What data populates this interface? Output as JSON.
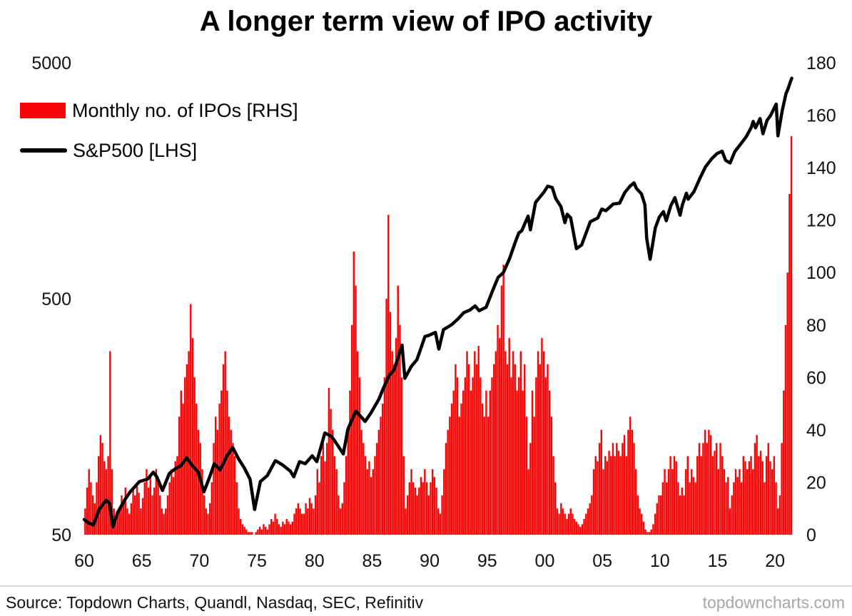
{
  "title": "A longer term view of IPO activity",
  "legend": [
    {
      "label": "Monthly no. of IPOs [RHS]",
      "color": "#f60606",
      "type": "bar"
    },
    {
      "label": "S&P500 [LHS]",
      "color": "#000000",
      "type": "line"
    }
  ],
  "footer": {
    "source": "Source: Topdown Charts, Quandl, Nasdaq, SEC, Refinitiv",
    "watermark": "topdowncharts.com"
  },
  "chart_data": {
    "type": "combo",
    "title": "A longer term view of IPO activity",
    "x_axis": {
      "min": 1960,
      "max": 2021.6,
      "tick_years": [
        1960,
        1965,
        1970,
        1975,
        1980,
        1985,
        1990,
        1995,
        2000,
        2005,
        2010,
        2015,
        2020
      ],
      "tick_labels": [
        "60",
        "65",
        "70",
        "75",
        "80",
        "85",
        "90",
        "95",
        "00",
        "05",
        "10",
        "15",
        "20"
      ]
    },
    "left_axis": {
      "scale": "log",
      "min": 50,
      "max": 5000,
      "ticks": [
        5000,
        500,
        50
      ]
    },
    "right_axis": {
      "scale": "linear",
      "min": 0,
      "max": 180,
      "ticks": [
        180,
        160,
        140,
        120,
        100,
        80,
        60,
        40,
        20,
        0
      ]
    },
    "series": [
      {
        "name": "Monthly no. of IPOs [RHS]",
        "type": "bar",
        "axis": "right",
        "color": "#f60606",
        "start_year": 1960,
        "points_per_year": 6,
        "values": [
          10,
          18,
          25,
          20,
          15,
          12,
          20,
          30,
          38,
          35,
          28,
          25,
          30,
          70,
          25,
          10,
          5,
          8,
          10,
          15,
          12,
          18,
          10,
          8,
          12,
          18,
          15,
          20,
          16,
          10,
          14,
          20,
          25,
          18,
          22,
          15,
          18,
          25,
          20,
          15,
          10,
          8,
          10,
          15,
          20,
          25,
          22,
          28,
          30,
          45,
          55,
          50,
          60,
          65,
          70,
          88,
          75,
          60,
          50,
          40,
          35,
          25,
          15,
          10,
          8,
          12,
          20,
          35,
          45,
          40,
          50,
          55,
          65,
          70,
          55,
          45,
          40,
          35,
          30,
          20,
          10,
          6,
          4,
          3,
          2,
          1,
          1,
          1,
          0,
          1,
          2,
          3,
          2,
          4,
          3,
          2,
          4,
          6,
          5,
          8,
          6,
          4,
          3,
          5,
          4,
          6,
          5,
          4,
          5,
          8,
          10,
          12,
          10,
          8,
          8,
          12,
          10,
          14,
          12,
          10,
          15,
          25,
          20,
          30,
          35,
          28,
          35,
          56,
          48,
          40,
          30,
          25,
          15,
          10,
          12,
          20,
          30,
          40,
          55,
          80,
          108,
          95,
          70,
          60,
          40,
          35,
          30,
          25,
          28,
          22,
          25,
          30,
          35,
          40,
          45,
          50,
          60,
          90,
          122,
          85,
          70,
          65,
          75,
          95,
          80,
          60,
          30,
          10,
          15,
          20,
          25,
          20,
          18,
          15,
          18,
          22,
          20,
          25,
          20,
          15,
          20,
          25,
          22,
          18,
          10,
          8,
          15,
          25,
          35,
          40,
          45,
          50,
          55,
          65,
          60,
          45,
          50,
          55,
          60,
          70,
          65,
          55,
          60,
          70,
          65,
          72,
          60,
          50,
          45,
          55,
          45,
          55,
          60,
          65,
          70,
          80,
          75,
          95,
          103,
          70,
          65,
          75,
          60,
          70,
          65,
          55,
          60,
          70,
          55,
          65,
          45,
          25,
          35,
          55,
          45,
          60,
          70,
          65,
          75,
          70,
          60,
          65,
          55,
          45,
          30,
          20,
          10,
          8,
          12,
          10,
          8,
          6,
          8,
          10,
          8,
          6,
          5,
          4,
          3,
          4,
          6,
          8,
          10,
          12,
          15,
          25,
          30,
          28,
          35,
          40,
          25,
          30,
          28,
          32,
          30,
          35,
          30,
          35,
          32,
          30,
          35,
          38,
          30,
          40,
          45,
          40,
          35,
          25,
          15,
          10,
          8,
          5,
          2,
          1,
          1,
          2,
          4,
          8,
          12,
          15,
          15,
          20,
          25,
          20,
          25,
          30,
          25,
          30,
          28,
          20,
          15,
          18,
          15,
          25,
          30,
          20,
          25,
          22,
          20,
          30,
          35,
          30,
          35,
          40,
          35,
          40,
          38,
          30,
          32,
          35,
          25,
          35,
          30,
          25,
          20,
          22,
          10,
          15,
          20,
          25,
          22,
          25,
          20,
          30,
          28,
          25,
          28,
          30,
          25,
          35,
          38,
          30,
          32,
          28,
          20,
          30,
          35,
          28,
          25,
          30,
          20,
          10,
          15,
          35,
          55,
          80,
          100,
          130,
          152
        ]
      },
      {
        "name": "S&P500 [LHS]",
        "type": "line",
        "axis": "left",
        "color": "#000000",
        "points": [
          [
            1960.0,
            58
          ],
          [
            1960.4,
            56
          ],
          [
            1960.8,
            55
          ],
          [
            1961.3,
            64
          ],
          [
            1961.9,
            70
          ],
          [
            1962.2,
            68
          ],
          [
            1962.5,
            54
          ],
          [
            1962.9,
            62
          ],
          [
            1963.5,
            70
          ],
          [
            1964.0,
            76
          ],
          [
            1964.8,
            84
          ],
          [
            1965.5,
            86
          ],
          [
            1966.0,
            92
          ],
          [
            1966.3,
            88
          ],
          [
            1966.8,
            77
          ],
          [
            1967.4,
            91
          ],
          [
            1967.9,
            95
          ],
          [
            1968.4,
            98
          ],
          [
            1968.9,
            106
          ],
          [
            1969.4,
            98
          ],
          [
            1969.9,
            92
          ],
          [
            1970.4,
            76
          ],
          [
            1970.9,
            88
          ],
          [
            1971.3,
            100
          ],
          [
            1971.8,
            94
          ],
          [
            1972.4,
            108
          ],
          [
            1972.9,
            117
          ],
          [
            1973.4,
            105
          ],
          [
            1973.9,
            96
          ],
          [
            1974.4,
            86
          ],
          [
            1974.8,
            64
          ],
          [
            1975.3,
            84
          ],
          [
            1975.9,
            89
          ],
          [
            1976.6,
            103
          ],
          [
            1977.2,
            99
          ],
          [
            1977.9,
            93
          ],
          [
            1978.2,
            88
          ],
          [
            1978.7,
            102
          ],
          [
            1979.2,
            100
          ],
          [
            1979.8,
            108
          ],
          [
            1980.2,
            102
          ],
          [
            1980.9,
            135
          ],
          [
            1981.5,
            130
          ],
          [
            1981.9,
            122
          ],
          [
            1982.5,
            110
          ],
          [
            1982.9,
            140
          ],
          [
            1983.6,
            167
          ],
          [
            1984.4,
            151
          ],
          [
            1984.9,
            164
          ],
          [
            1985.6,
            188
          ],
          [
            1985.95,
            207
          ],
          [
            1986.5,
            237
          ],
          [
            1986.9,
            249
          ],
          [
            1987.6,
            318
          ],
          [
            1987.85,
            230
          ],
          [
            1988.4,
            258
          ],
          [
            1988.9,
            276
          ],
          [
            1989.6,
            346
          ],
          [
            1989.95,
            350
          ],
          [
            1990.5,
            360
          ],
          [
            1990.8,
            306
          ],
          [
            1991.2,
            370
          ],
          [
            1991.9,
            388
          ],
          [
            1992.5,
            412
          ],
          [
            1992.95,
            436
          ],
          [
            1993.5,
            448
          ],
          [
            1993.95,
            466
          ],
          [
            1994.3,
            445
          ],
          [
            1994.9,
            460
          ],
          [
            1995.5,
            545
          ],
          [
            1995.95,
            616
          ],
          [
            1996.4,
            645
          ],
          [
            1996.95,
            741
          ],
          [
            1997.5,
            885
          ],
          [
            1997.75,
            950
          ],
          [
            1998.0,
            970
          ],
          [
            1998.55,
            1120
          ],
          [
            1998.75,
            980
          ],
          [
            1999.2,
            1280
          ],
          [
            1999.95,
            1420
          ],
          [
            2000.25,
            1500
          ],
          [
            2000.65,
            1480
          ],
          [
            2000.95,
            1330
          ],
          [
            2001.4,
            1230
          ],
          [
            2001.75,
            1050
          ],
          [
            2001.95,
            1140
          ],
          [
            2002.25,
            1100
          ],
          [
            2002.75,
            815
          ],
          [
            2003.2,
            845
          ],
          [
            2003.95,
            1060
          ],
          [
            2004.6,
            1100
          ],
          [
            2004.95,
            1200
          ],
          [
            2005.3,
            1180
          ],
          [
            2005.95,
            1260
          ],
          [
            2006.5,
            1270
          ],
          [
            2006.95,
            1410
          ],
          [
            2007.4,
            1500
          ],
          [
            2007.75,
            1550
          ],
          [
            2007.95,
            1470
          ],
          [
            2008.4,
            1390
          ],
          [
            2008.7,
            1250
          ],
          [
            2008.85,
            900
          ],
          [
            2009.15,
            735
          ],
          [
            2009.6,
            1000
          ],
          [
            2009.95,
            1110
          ],
          [
            2010.3,
            1170
          ],
          [
            2010.55,
            1070
          ],
          [
            2010.95,
            1240
          ],
          [
            2011.3,
            1340
          ],
          [
            2011.75,
            1130
          ],
          [
            2011.95,
            1250
          ],
          [
            2012.3,
            1400
          ],
          [
            2012.45,
            1320
          ],
          [
            2012.95,
            1420
          ],
          [
            2013.5,
            1630
          ],
          [
            2013.95,
            1810
          ],
          [
            2014.5,
            1960
          ],
          [
            2014.95,
            2060
          ],
          [
            2015.4,
            2110
          ],
          [
            2015.7,
            1930
          ],
          [
            2016.1,
            1880
          ],
          [
            2016.5,
            2100
          ],
          [
            2016.95,
            2240
          ],
          [
            2017.5,
            2430
          ],
          [
            2017.95,
            2670
          ],
          [
            2018.1,
            2820
          ],
          [
            2018.3,
            2650
          ],
          [
            2018.7,
            2900
          ],
          [
            2018.95,
            2500
          ],
          [
            2019.3,
            2850
          ],
          [
            2019.6,
            2980
          ],
          [
            2019.95,
            3230
          ],
          [
            2020.1,
            3340
          ],
          [
            2020.25,
            2450
          ],
          [
            2020.6,
            3100
          ],
          [
            2020.95,
            3700
          ],
          [
            2021.15,
            3900
          ],
          [
            2021.35,
            4180
          ],
          [
            2021.45,
            4300
          ]
        ]
      }
    ]
  }
}
